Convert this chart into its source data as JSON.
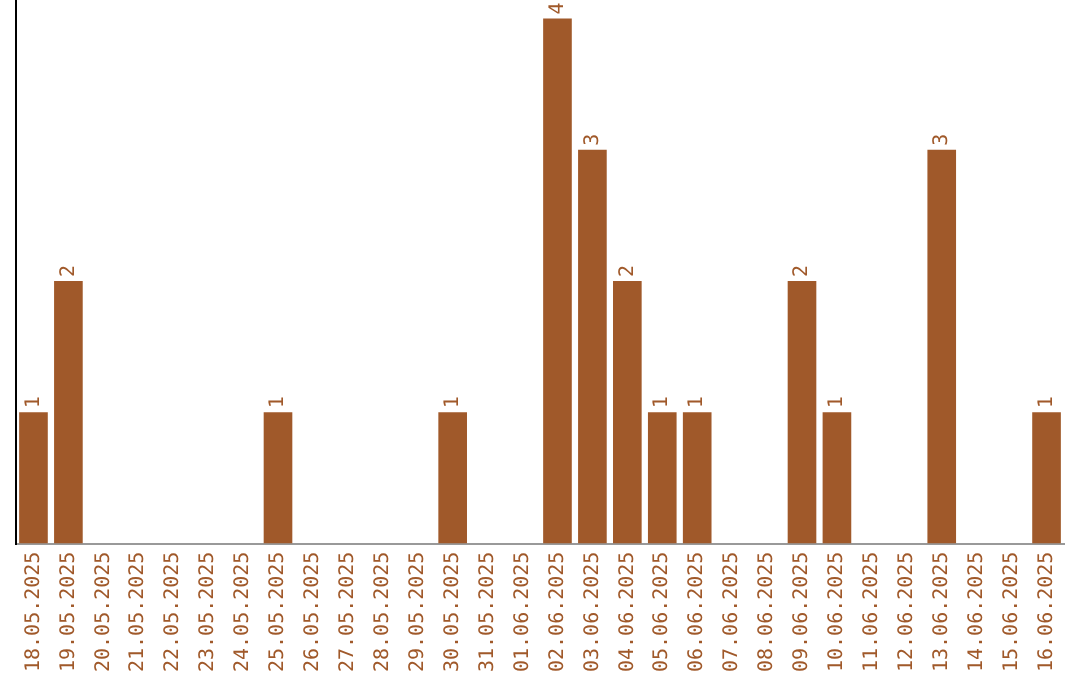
{
  "chart_data": {
    "type": "bar",
    "categories": [
      "18.05.2025",
      "19.05.2025",
      "20.05.2025",
      "21.05.2025",
      "22.05.2025",
      "23.05.2025",
      "24.05.2025",
      "25.05.2025",
      "26.05.2025",
      "27.05.2025",
      "28.05.2025",
      "29.05.2025",
      "30.05.2025",
      "31.05.2025",
      "01.06.2025",
      "02.06.2025",
      "03.06.2025",
      "04.06.2025",
      "05.06.2025",
      "06.06.2025",
      "07.06.2025",
      "08.06.2025",
      "09.06.2025",
      "10.06.2025",
      "11.06.2025",
      "12.06.2025",
      "13.06.2025",
      "14.06.2025",
      "15.06.2025",
      "16.06.2025"
    ],
    "values": [
      1,
      2,
      0,
      0,
      0,
      0,
      0,
      1,
      0,
      0,
      0,
      0,
      1,
      0,
      0,
      4,
      3,
      2,
      1,
      1,
      0,
      0,
      2,
      1,
      0,
      0,
      3,
      0,
      0,
      1
    ],
    "value_labels": [
      "1",
      "2",
      null,
      null,
      null,
      null,
      null,
      "1",
      null,
      null,
      null,
      null,
      "1",
      null,
      null,
      "4",
      "3",
      "2",
      "1",
      "1",
      null,
      null,
      "2",
      "1",
      null,
      null,
      "3",
      null,
      null,
      "1"
    ],
    "color": "#a0592a",
    "tick_labels": "x",
    "grid": false,
    "legend": false
  }
}
